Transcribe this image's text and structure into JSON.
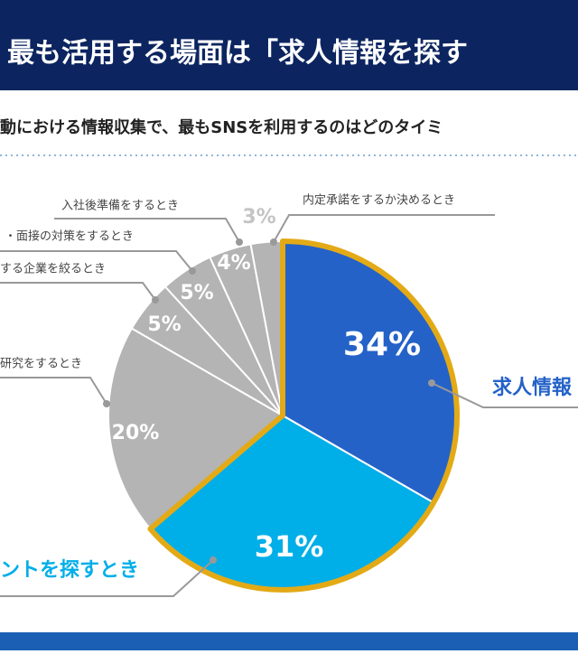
{
  "header": {
    "title": "最も活用する場面は「求人情報を探す"
  },
  "chart_data": {
    "type": "pie",
    "subtitle": "動における情報収集で、最もSNSを利用するのはどのタイミ",
    "categories": [
      "求人情報",
      "ントを探すとき",
      "研究をするとき",
      "する企業を絞るとき",
      "・面接の対策をするとき",
      "入社後準備をするとき",
      "内定承諾をするか決めるとき"
    ],
    "values": [
      34,
      31,
      20,
      5,
      5,
      4,
      3
    ],
    "value_labels": [
      "34%",
      "31%",
      "20%",
      "5%",
      "5%",
      "4%",
      "3%"
    ],
    "colors": [
      "#2462c8",
      "#00aee8",
      "#b4b4b4",
      "#b4b4b4",
      "#b4b4b4",
      "#b4b4b4",
      "#b4b4b4"
    ],
    "outline_color": "#e3aa16"
  }
}
